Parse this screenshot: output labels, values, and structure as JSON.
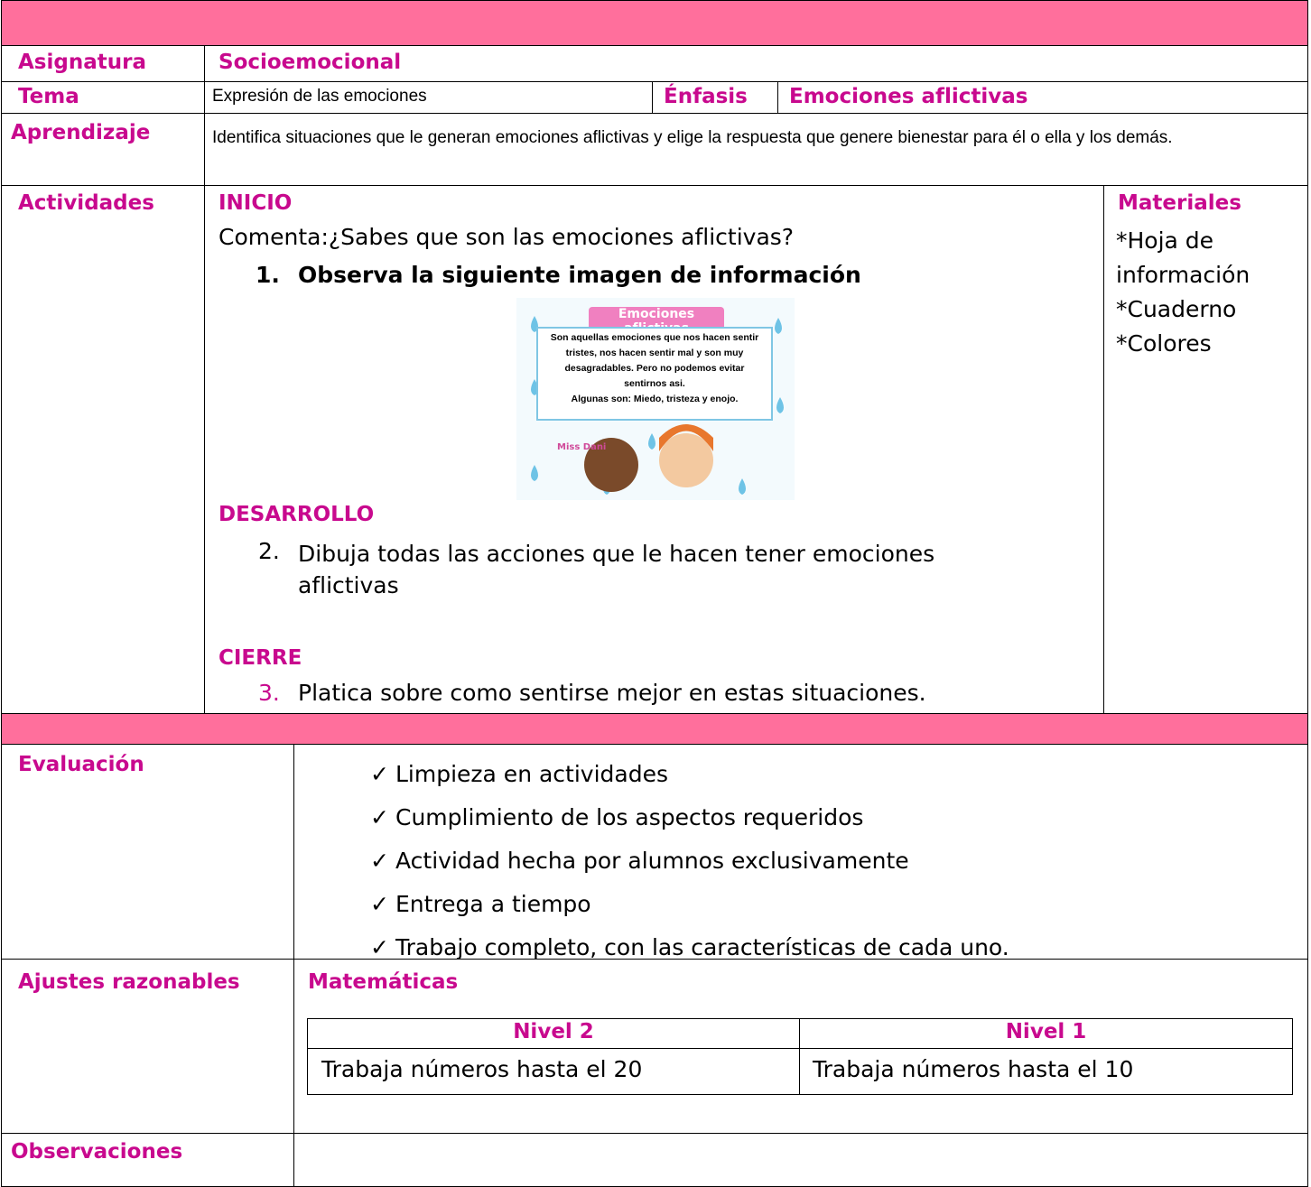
{
  "subject": {
    "label": "Asignatura",
    "value": "Socioemocional"
  },
  "topic": {
    "label": "Tema",
    "value": "Expresión de las emociones",
    "emphasis_label": "Énfasis",
    "emphasis": "Emociones aflictivas"
  },
  "learning": {
    "label": "Aprendizaje",
    "value": "Identifica situaciones que le generan emociones aflictivas y elige la respuesta que genere bienestar para él o ella y los demás."
  },
  "activities": {
    "label": "Actividades",
    "start": {
      "heading": "INICIO",
      "prompt": "Comenta:¿Sabes que son las emociones aflictivas?",
      "number": "1.",
      "text": "Observa la siguiente imagen de información",
      "image": {
        "title": "Emociones aflictivas",
        "lines": [
          "Son aquellas emociones que nos hacen sentir",
          "tristes, nos hacen sentir mal y son muy",
          "desagradables. Pero no podemos evitar",
          "sentirnos asi.",
          "Algunas son: Miedo, tristeza y enojo."
        ],
        "brand": "Miss Dani"
      }
    },
    "development": {
      "heading": "DESARROLLO",
      "number": "2.",
      "text": "Dibuja todas las acciones que le hacen tener emociones aflictivas"
    },
    "closing": {
      "heading": "CIERRE",
      "number": "3.",
      "text": "Platica sobre como sentirse mejor en estas situaciones."
    }
  },
  "materials": {
    "label": "Materiales",
    "items": [
      "*Hoja de información",
      "*Cuaderno",
      "*Colores"
    ]
  },
  "evaluation": {
    "label": "Evaluación",
    "marker": "✓",
    "items": [
      "Limpieza en actividades",
      "Cumplimiento de los aspectos requeridos",
      "Actividad hecha por alumnos exclusivamente",
      "Entrega a tiempo",
      "Trabajo completo, con las características de cada uno."
    ]
  },
  "adjustments": {
    "label": "Ajustes razonables",
    "subject": "Matemáticas",
    "table": {
      "headers": [
        "Nivel 2",
        "Nivel 1"
      ],
      "rows": [
        [
          "Trabaja números hasta el 20",
          "Trabaja números hasta el 10"
        ]
      ]
    }
  },
  "observations": {
    "label": "Observaciones"
  }
}
